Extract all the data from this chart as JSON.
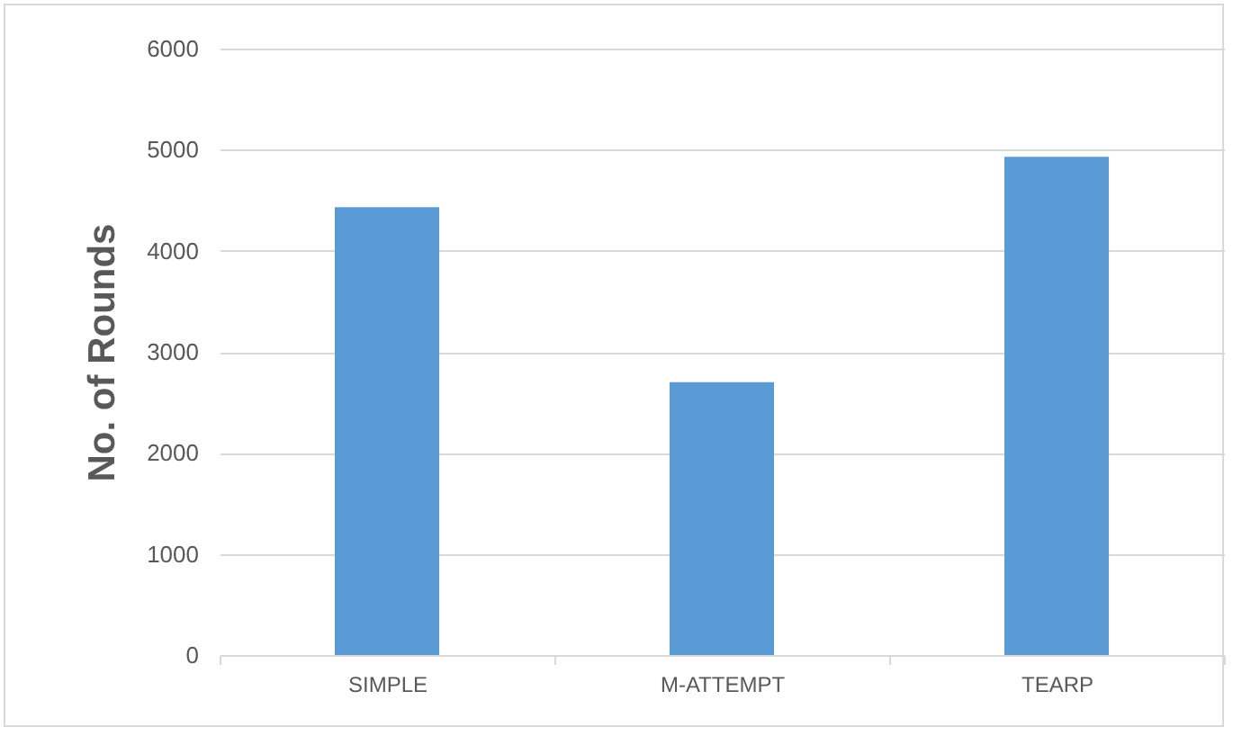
{
  "chart_data": {
    "type": "bar",
    "ylabel": "No. of Rounds",
    "categories": [
      "SIMPLE",
      "M-ATTEMPT",
      "TEARP"
    ],
    "series": [
      {
        "color": "#5b9bd5",
        "values": [
          4430,
          2700,
          4930
        ]
      }
    ],
    "ylim": [
      0,
      6000
    ],
    "yticks": [
      0,
      1000,
      2000,
      3000,
      4000,
      5000,
      6000
    ],
    "grid": "y"
  }
}
